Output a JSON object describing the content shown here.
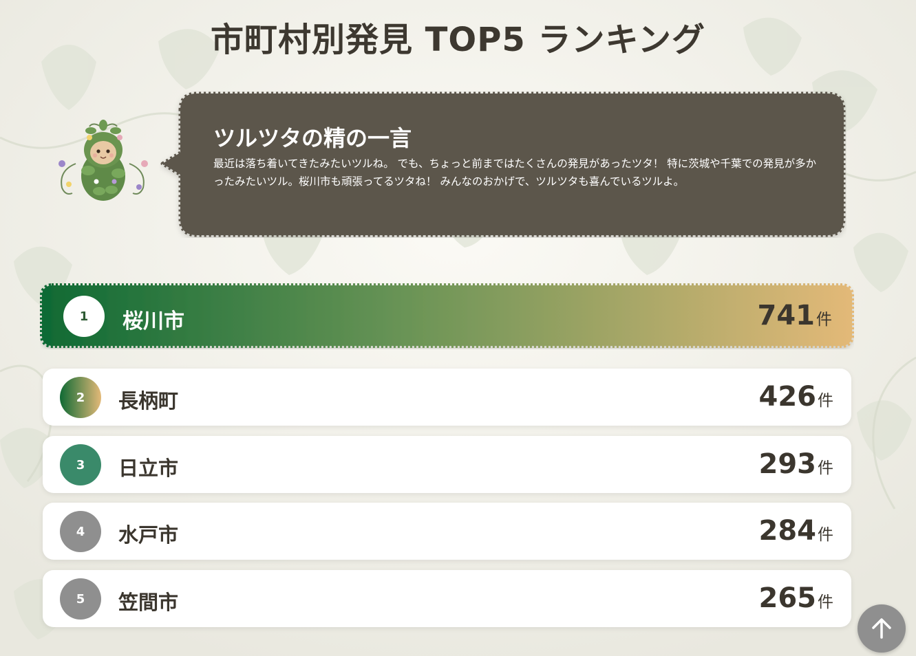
{
  "page": {
    "title": "市町村別発見 TOP5 ランキング"
  },
  "speech": {
    "title": "ツルツタの精の一言",
    "text": "最近は落ち着いてきたみたいツルね。 でも、ちょっと前まではたくさんの発見があったツタ！ 特に茨城や千葉での発見が多かったみたいツル。桜川市も頑張ってるツタね！ みんなのおかげで、ツルツタも喜んでいるツルよ。"
  },
  "ranking": {
    "unit": "件",
    "items": [
      {
        "rank": "1",
        "city": "桜川市",
        "count": "741",
        "badge_color": "#ffffff"
      },
      {
        "rank": "2",
        "city": "長柄町",
        "count": "426",
        "badge_color": "gradient"
      },
      {
        "rank": "3",
        "city": "日立市",
        "count": "293",
        "badge_color": "#3a8a6a"
      },
      {
        "rank": "4",
        "city": "水戸市",
        "count": "284",
        "badge_color": "#8f8f8f"
      },
      {
        "rank": "5",
        "city": "笠間市",
        "count": "265",
        "badge_color": "#8f8f8f"
      }
    ]
  },
  "colors": {
    "banner_start": "#0f6a34",
    "banner_end": "#e3b978",
    "bubble": "#5c564c",
    "text": "#3b362e"
  },
  "icons": {
    "fairy": "ivy-fairy-icon",
    "scroll_top": "arrow-up-icon"
  }
}
